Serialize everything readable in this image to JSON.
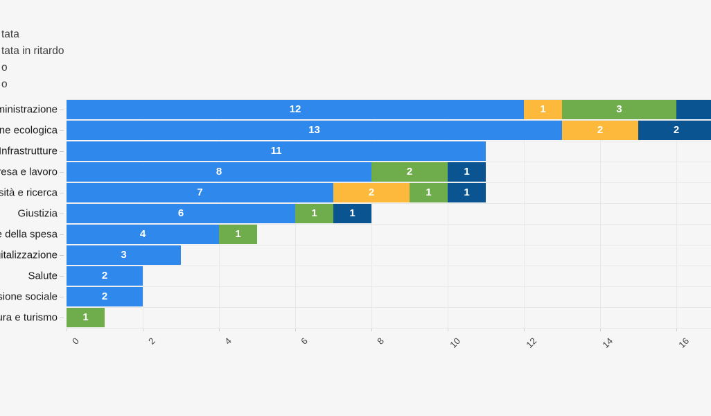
{
  "colors": {
    "blue": "#2F89EC",
    "orange": "#FCB93B",
    "green": "#6FAC4B",
    "darkblue": "#0A5591",
    "background": "#F6F6F6",
    "gridline": "#E9E9E9",
    "bar_value_text": "#FFFFFF",
    "axis_text": "#3D3D3D",
    "category_text": "#1A1A1A",
    "legend_text": "#3D3D3D"
  },
  "legend": {
    "items": [
      {
        "label": "tata",
        "color_key": "blue"
      },
      {
        "label": "tata in ritardo",
        "color_key": "orange"
      },
      {
        "label": "o",
        "color_key": "green"
      },
      {
        "label": "o",
        "color_key": "darkblue"
      }
    ]
  },
  "x_axis": {
    "ticks": [
      "0",
      "2",
      "4",
      "6",
      "8",
      "10",
      "12",
      "14",
      "16"
    ],
    "min": 0,
    "max": 16.9
  },
  "rows": [
    {
      "label": "mministrazione",
      "segments": [
        {
          "color_key": "blue",
          "value": 12,
          "text": "12"
        },
        {
          "color_key": "orange",
          "value": 1,
          "text": "1"
        },
        {
          "color_key": "green",
          "value": 3,
          "text": "3"
        },
        {
          "color_key": "darkblue",
          "value": 1,
          "text": ""
        }
      ]
    },
    {
      "label": "zione ecologica",
      "segments": [
        {
          "color_key": "blue",
          "value": 13,
          "text": "13"
        },
        {
          "color_key": "orange",
          "value": 2,
          "text": "2"
        },
        {
          "color_key": "darkblue",
          "value": 2,
          "text": "2"
        }
      ]
    },
    {
      "label": "Infrastrutture",
      "segments": [
        {
          "color_key": "blue",
          "value": 11,
          "text": "11"
        }
      ]
    },
    {
      "label": "mpresa e lavoro",
      "segments": [
        {
          "color_key": "blue",
          "value": 8,
          "text": "8"
        },
        {
          "color_key": "green",
          "value": 2,
          "text": "2"
        },
        {
          "color_key": "darkblue",
          "value": 1,
          "text": "1"
        }
      ]
    },
    {
      "label": "versità e ricerca",
      "segments": [
        {
          "color_key": "blue",
          "value": 7,
          "text": "7"
        },
        {
          "color_key": "orange",
          "value": 2,
          "text": "2"
        },
        {
          "color_key": "green",
          "value": 1,
          "text": "1"
        },
        {
          "color_key": "darkblue",
          "value": 1,
          "text": "1"
        }
      ]
    },
    {
      "label": "Giustizia",
      "segments": [
        {
          "color_key": "blue",
          "value": 6,
          "text": "6"
        },
        {
          "color_key": "green",
          "value": 1,
          "text": "1"
        },
        {
          "color_key": "darkblue",
          "value": 1,
          "text": "1"
        }
      ]
    },
    {
      "label": "one della spesa",
      "segments": [
        {
          "color_key": "blue",
          "value": 4,
          "text": "4"
        },
        {
          "color_key": "green",
          "value": 1,
          "text": "1"
        }
      ]
    },
    {
      "label": "Digitalizzazione",
      "segments": [
        {
          "color_key": "blue",
          "value": 3,
          "text": "3"
        }
      ]
    },
    {
      "label": "Salute",
      "segments": [
        {
          "color_key": "blue",
          "value": 2,
          "text": "2"
        }
      ]
    },
    {
      "label": "clusione sociale",
      "segments": [
        {
          "color_key": "blue",
          "value": 2,
          "text": "2"
        }
      ]
    },
    {
      "label": "ultura e turismo",
      "segments": [
        {
          "color_key": "green",
          "value": 1,
          "text": "1"
        }
      ]
    }
  ],
  "chart_data": {
    "type": "bar",
    "orientation": "horizontal",
    "stacked": true,
    "title": "",
    "xlabel": "",
    "ylabel": "",
    "xlim": [
      0,
      16.9
    ],
    "grid": true,
    "legend_position": "top-left",
    "legend_entries_visible": [
      "tata",
      "tata in ritardo",
      "o",
      "o"
    ],
    "categories": [
      "mministrazione",
      "zione ecologica",
      "Infrastrutture",
      "mpresa e lavoro",
      "versità e ricerca",
      "Giustizia",
      "one della spesa",
      "Digitalizzazione",
      "Salute",
      "clusione sociale",
      "ultura e turismo"
    ],
    "series": [
      {
        "name": "tata",
        "color": "#2F89EC",
        "values": [
          12,
          13,
          11,
          8,
          7,
          6,
          4,
          3,
          2,
          2,
          0
        ]
      },
      {
        "name": "tata in ritardo",
        "color": "#FCB93B",
        "values": [
          1,
          2,
          0,
          0,
          2,
          0,
          0,
          0,
          0,
          0,
          0
        ]
      },
      {
        "name": "o",
        "color": "#6FAC4B",
        "values": [
          3,
          0,
          0,
          2,
          1,
          1,
          1,
          0,
          0,
          0,
          1
        ]
      },
      {
        "name": "o",
        "color": "#0A5591",
        "values": [
          1,
          2,
          0,
          1,
          1,
          1,
          0,
          0,
          0,
          0,
          0
        ]
      }
    ]
  }
}
